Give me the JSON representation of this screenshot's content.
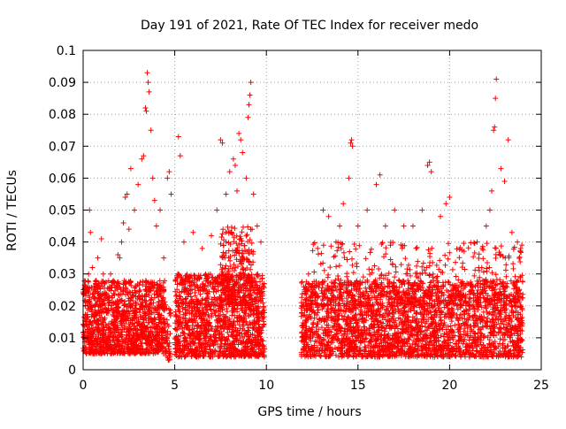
{
  "chart_data": {
    "type": "scatter",
    "title": "Day 191 of 2021, Rate Of TEC Index for receiver medo",
    "xlabel": "GPS time / hours",
    "ylabel": "ROTI / TECUs",
    "xlim": [
      0,
      25
    ],
    "ylim": [
      0,
      0.1
    ],
    "x_ticks": [
      0,
      5,
      10,
      15,
      20,
      25
    ],
    "x_tick_labels": [
      "0",
      "5",
      "10",
      "15",
      "20",
      "25"
    ],
    "y_ticks": [
      0,
      0.01,
      0.02,
      0.03,
      0.04,
      0.05,
      0.06,
      0.07,
      0.08,
      0.09,
      0.1
    ],
    "y_tick_labels": [
      "0",
      "0.01",
      "0.02",
      "0.03",
      "0.04",
      "0.05",
      "0.06",
      "0.07",
      "0.08",
      "0.09",
      "0.1"
    ],
    "grid": true,
    "marker": "plus",
    "color": "#ff0000",
    "series": [
      {
        "points": [
          [
            0.2,
            0.025
          ],
          [
            0.3,
            0.03
          ],
          [
            0.35,
            0.05
          ],
          [
            0.4,
            0.043
          ],
          [
            0.5,
            0.032
          ],
          [
            0.8,
            0.035
          ],
          [
            1.0,
            0.041
          ],
          [
            1.1,
            0.03
          ],
          [
            1.5,
            0.03
          ],
          [
            1.9,
            0.036
          ],
          [
            2.0,
            0.035
          ],
          [
            2.1,
            0.04
          ],
          [
            2.2,
            0.046
          ],
          [
            2.3,
            0.054
          ],
          [
            2.4,
            0.055
          ],
          [
            2.5,
            0.044
          ],
          [
            2.6,
            0.063
          ],
          [
            2.8,
            0.05
          ],
          [
            3.0,
            0.058
          ],
          [
            3.2,
            0.066
          ],
          [
            3.3,
            0.067
          ],
          [
            3.4,
            0.082
          ],
          [
            3.45,
            0.081
          ],
          [
            3.5,
            0.093
          ],
          [
            3.55,
            0.09
          ],
          [
            3.6,
            0.087
          ],
          [
            3.7,
            0.075
          ],
          [
            3.8,
            0.06
          ],
          [
            3.9,
            0.053
          ],
          [
            4.0,
            0.045
          ],
          [
            4.2,
            0.05
          ],
          [
            4.4,
            0.035
          ],
          [
            4.6,
            0.06
          ],
          [
            4.7,
            0.062
          ],
          [
            4.8,
            0.055
          ],
          [
            5.2,
            0.073
          ],
          [
            5.3,
            0.067
          ],
          [
            5.5,
            0.04
          ],
          [
            6.0,
            0.043
          ],
          [
            6.5,
            0.038
          ],
          [
            7.0,
            0.042
          ],
          [
            7.3,
            0.05
          ],
          [
            7.5,
            0.072
          ],
          [
            7.6,
            0.071
          ],
          [
            7.8,
            0.055
          ],
          [
            8.0,
            0.062
          ],
          [
            8.2,
            0.066
          ],
          [
            8.3,
            0.064
          ],
          [
            8.4,
            0.056
          ],
          [
            8.5,
            0.074
          ],
          [
            8.6,
            0.072
          ],
          [
            8.7,
            0.068
          ],
          [
            8.9,
            0.06
          ],
          [
            9.0,
            0.079
          ],
          [
            9.05,
            0.083
          ],
          [
            9.1,
            0.086
          ],
          [
            9.15,
            0.09
          ],
          [
            9.3,
            0.055
          ],
          [
            9.5,
            0.045
          ],
          [
            9.7,
            0.04
          ],
          [
            12.3,
            0.03
          ],
          [
            12.8,
            0.038
          ],
          [
            13.1,
            0.05
          ],
          [
            13.4,
            0.048
          ],
          [
            13.8,
            0.04
          ],
          [
            14.0,
            0.045
          ],
          [
            14.2,
            0.052
          ],
          [
            14.5,
            0.06
          ],
          [
            14.6,
            0.071
          ],
          [
            14.65,
            0.072
          ],
          [
            14.7,
            0.07
          ],
          [
            15.0,
            0.045
          ],
          [
            15.5,
            0.05
          ],
          [
            16.0,
            0.058
          ],
          [
            16.2,
            0.061
          ],
          [
            16.5,
            0.045
          ],
          [
            17.0,
            0.05
          ],
          [
            17.5,
            0.045
          ],
          [
            18.0,
            0.045
          ],
          [
            18.5,
            0.05
          ],
          [
            18.8,
            0.064
          ],
          [
            18.9,
            0.065
          ],
          [
            19.0,
            0.062
          ],
          [
            19.5,
            0.048
          ],
          [
            19.8,
            0.052
          ],
          [
            20.0,
            0.054
          ],
          [
            21.5,
            0.04
          ],
          [
            22.0,
            0.045
          ],
          [
            22.2,
            0.05
          ],
          [
            22.3,
            0.056
          ],
          [
            22.4,
            0.075
          ],
          [
            22.45,
            0.076
          ],
          [
            22.5,
            0.085
          ],
          [
            22.55,
            0.091
          ],
          [
            22.8,
            0.063
          ],
          [
            23.0,
            0.059
          ],
          [
            23.2,
            0.072
          ],
          [
            23.4,
            0.043
          ],
          [
            23.7,
            0.04
          ]
        ],
        "dense_bands": [
          {
            "x": [
              0.0,
              4.5
            ],
            "y": [
              0.005,
              0.028
            ],
            "n": 1300
          },
          {
            "x": [
              4.5,
              4.8
            ],
            "y": [
              0.003,
              0.02
            ],
            "n": 40
          },
          {
            "x": [
              5.0,
              9.9
            ],
            "y": [
              0.004,
              0.03
            ],
            "n": 1300
          },
          {
            "x": [
              7.5,
              9.3
            ],
            "y": [
              0.02,
              0.045
            ],
            "n": 250
          },
          {
            "x": [
              11.9,
              24.0
            ],
            "y": [
              0.004,
              0.028
            ],
            "n": 2600
          },
          {
            "x": [
              12.5,
              24.0
            ],
            "y": [
              0.02,
              0.04
            ],
            "n": 400
          }
        ]
      }
    ]
  }
}
